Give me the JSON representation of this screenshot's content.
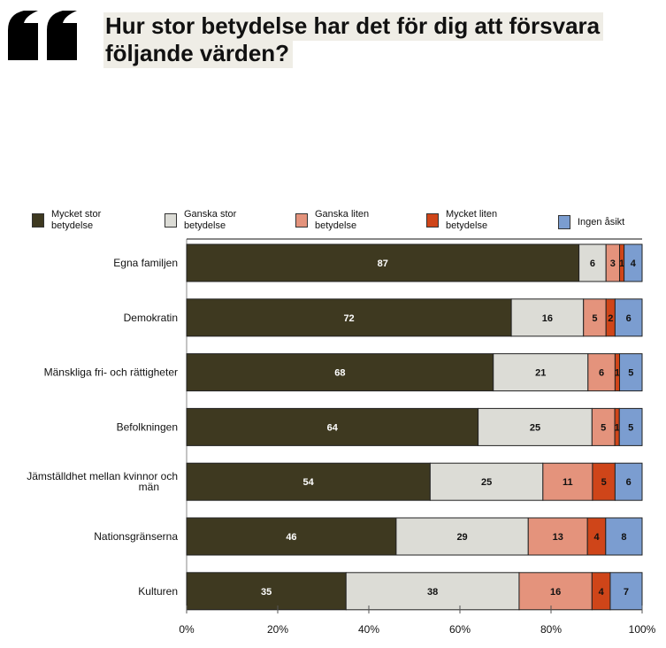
{
  "header": {
    "quote_icon": "left-double-quote-icon",
    "title_line1": "Hur stor betydelse har det för dig att försvara",
    "title_line2": "följande värden?"
  },
  "chart_data": {
    "type": "bar",
    "orientation": "horizontal",
    "stacked": true,
    "normalized": true,
    "title": "Hur stor betydelse har det för dig att försvara följande värden?",
    "xlabel": "",
    "ylabel": "",
    "xlim": [
      0,
      100
    ],
    "x_ticks": [
      "0%",
      "20%",
      "40%",
      "60%",
      "80%",
      "100%"
    ],
    "grid": false,
    "legend_position": "top",
    "categories": [
      "Egna familjen",
      "Demokratin",
      "Mänskliga fri- och rättigheter",
      "Befolkningen",
      "Jämställdhet mellan kvinnor och män",
      "Nationsgränserna",
      "Kulturen"
    ],
    "series": [
      {
        "name": "Mycket stor betydelse",
        "color": "#3e3920",
        "label_color": "#ffffff",
        "values": [
          87,
          72,
          68,
          64,
          54,
          46,
          35
        ]
      },
      {
        "name": "Ganska stor betydelse",
        "color": "#dcdcd6",
        "label_color": "#111111",
        "values": [
          6,
          16,
          21,
          25,
          25,
          29,
          38
        ]
      },
      {
        "name": "Ganska liten betydelse",
        "color": "#e4937c",
        "label_color": "#111111",
        "values": [
          3,
          5,
          6,
          5,
          11,
          13,
          16
        ]
      },
      {
        "name": "Mycket liten betydelse",
        "color": "#cf4519",
        "label_color": "#111111",
        "values": [
          1,
          2,
          1,
          1,
          5,
          4,
          4
        ]
      },
      {
        "name": "Ingen åsikt",
        "color": "#7b9dd0",
        "label_color": "#111111",
        "values": [
          4,
          6,
          5,
          5,
          6,
          8,
          7
        ]
      }
    ]
  },
  "legend": [
    {
      "line1": "Mycket stor",
      "line2": "betydelse",
      "color": "#3e3920"
    },
    {
      "line1": "Ganska stor",
      "line2": "betydelse",
      "color": "#dcdcd6"
    },
    {
      "line1": "Ganska liten",
      "line2": "betydelse",
      "color": "#e4937c"
    },
    {
      "line1": "Mycket liten",
      "line2": "betydelse",
      "color": "#cf4519"
    },
    {
      "line1": "Ingen åsikt",
      "line2": "",
      "color": "#7b9dd0"
    }
  ]
}
